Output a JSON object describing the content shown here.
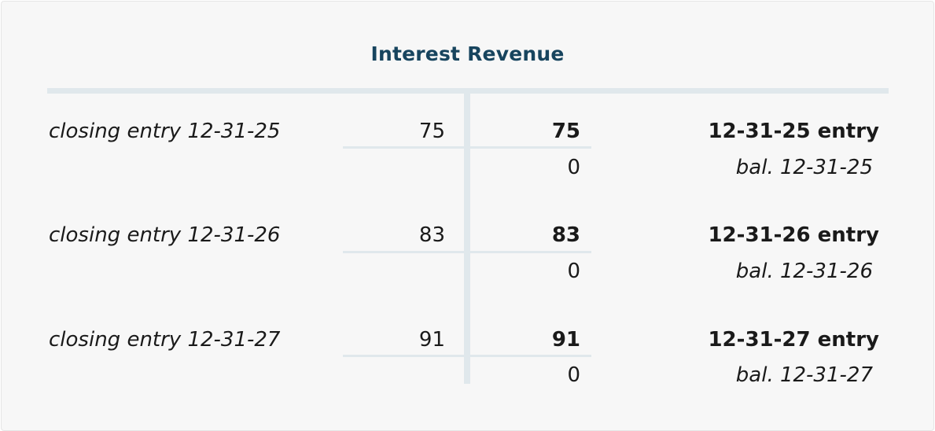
{
  "title": "Interest Revenue",
  "rows": [
    {
      "description": "closing entry 12-31-25",
      "debit": "75",
      "credit": "75",
      "credit_label": "12-31-25 entry",
      "balance": "0",
      "balance_label": "bal. 12-31-25"
    },
    {
      "description": "closing entry 12-31-26",
      "debit": "83",
      "credit": "83",
      "credit_label": "12-31-26 entry",
      "balance": "0",
      "balance_label": "bal. 12-31-26"
    },
    {
      "description": "closing entry 12-31-27",
      "debit": "91",
      "credit": "91",
      "credit_label": "12-31-27 entry",
      "balance": "0",
      "balance_label": "bal. 12-31-27"
    }
  ],
  "colors": {
    "title": "#17445e",
    "lines": "#e0e8ec",
    "text": "#1a1a1a"
  }
}
